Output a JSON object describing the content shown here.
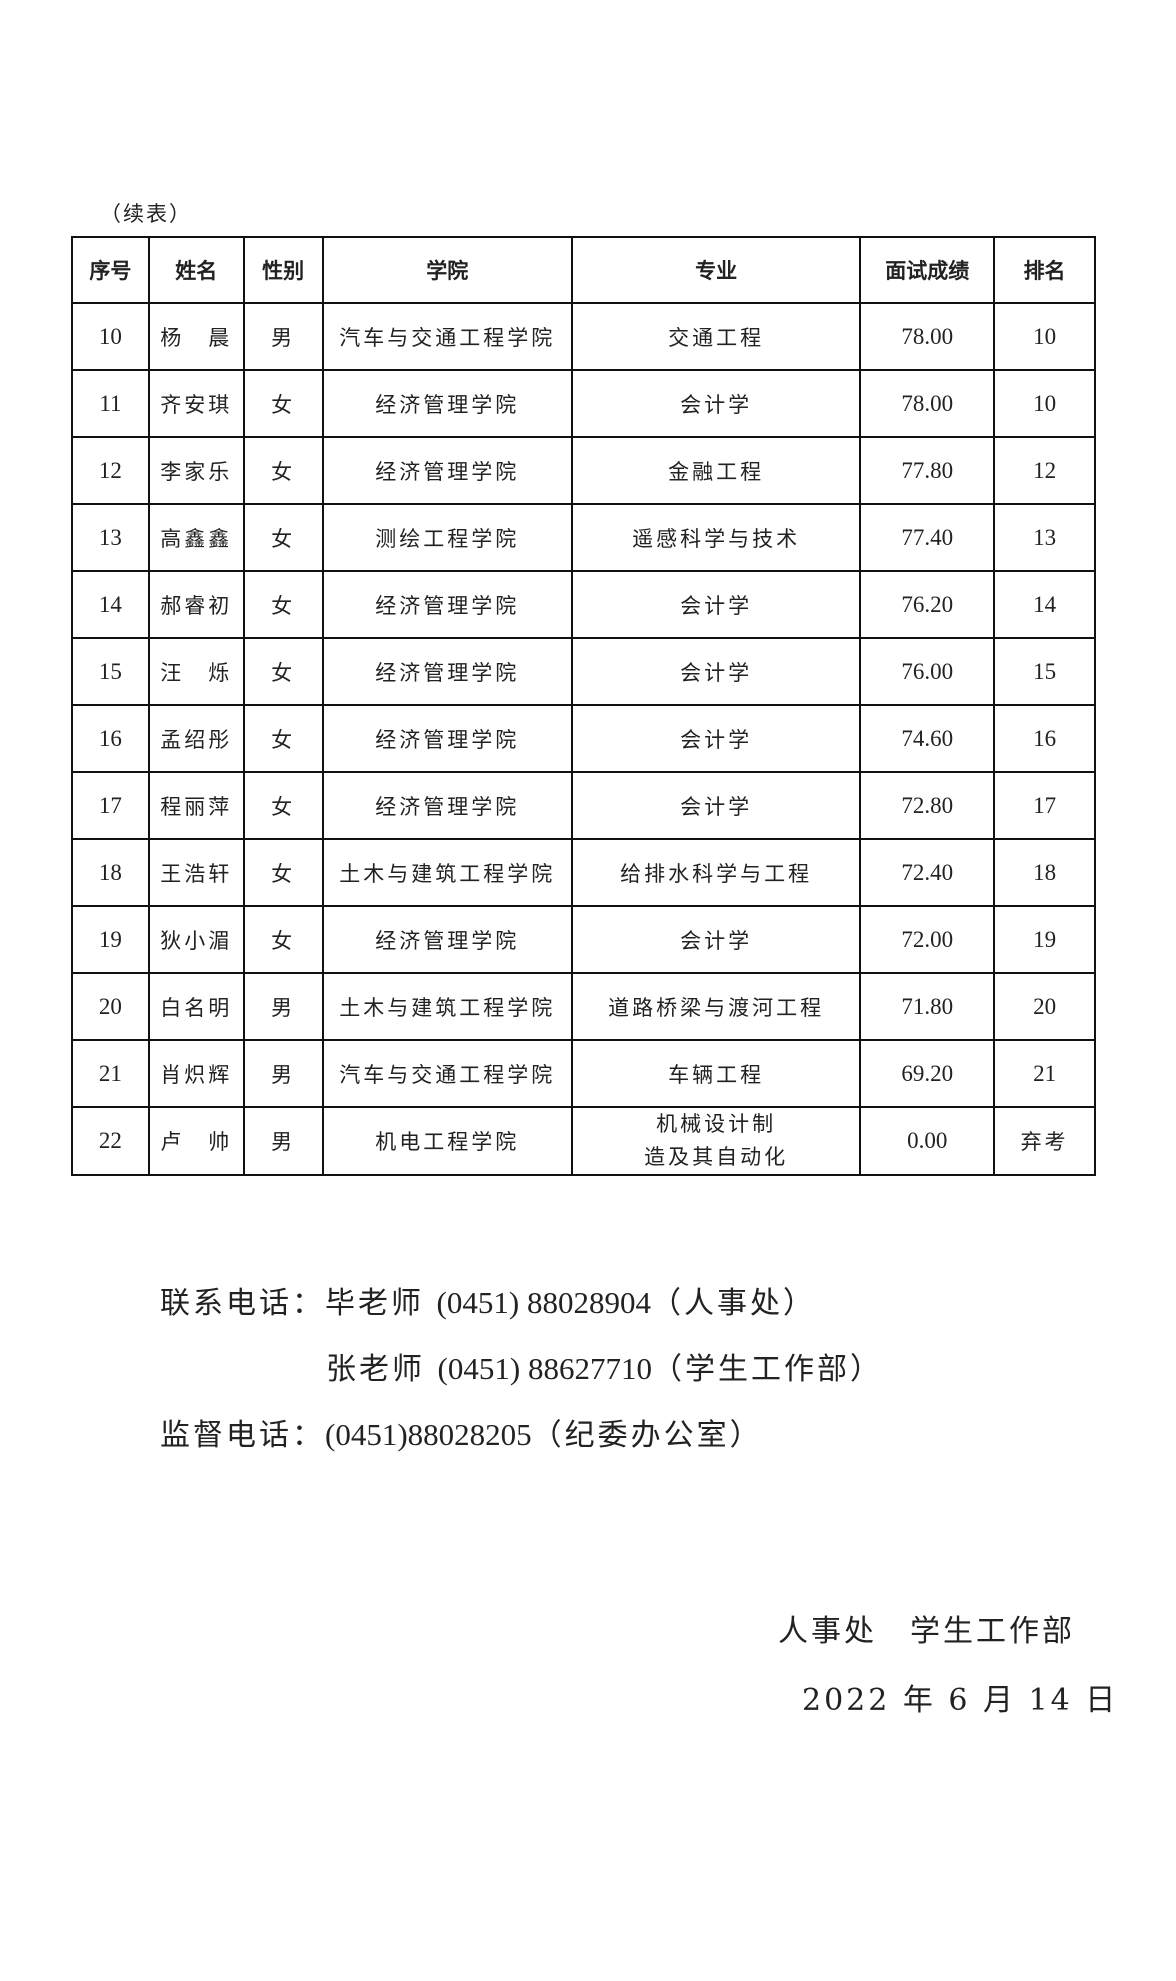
{
  "caption": "（续表）",
  "table": {
    "headers": [
      "序号",
      "姓名",
      "性别",
      "学院",
      "专业",
      "面试成绩",
      "排名"
    ],
    "rows": [
      [
        "10",
        "杨　晨",
        "男",
        "汽车与交通工程学院",
        "交通工程",
        "78.00",
        "10"
      ],
      [
        "11",
        "齐安琪",
        "女",
        "经济管理学院",
        "会计学",
        "78.00",
        "10"
      ],
      [
        "12",
        "李家乐",
        "女",
        "经济管理学院",
        "金融工程",
        "77.80",
        "12"
      ],
      [
        "13",
        "高鑫鑫",
        "女",
        "测绘工程学院",
        "遥感科学与技术",
        "77.40",
        "13"
      ],
      [
        "14",
        "郝睿初",
        "女",
        "经济管理学院",
        "会计学",
        "76.20",
        "14"
      ],
      [
        "15",
        "汪　烁",
        "女",
        "经济管理学院",
        "会计学",
        "76.00",
        "15"
      ],
      [
        "16",
        "孟绍彤",
        "女",
        "经济管理学院",
        "会计学",
        "74.60",
        "16"
      ],
      [
        "17",
        "程丽萍",
        "女",
        "经济管理学院",
        "会计学",
        "72.80",
        "17"
      ],
      [
        "18",
        "王浩轩",
        "女",
        "土木与建筑工程学院",
        "给排水科学与工程",
        "72.40",
        "18"
      ],
      [
        "19",
        "狄小湄",
        "女",
        "经济管理学院",
        "会计学",
        "72.00",
        "19"
      ],
      [
        "20",
        "白名明",
        "男",
        "土木与建筑工程学院",
        "道路桥梁与渡河工程",
        "71.80",
        "20"
      ],
      [
        "21",
        "肖炽辉",
        "男",
        "汽车与交通工程学院",
        "车辆工程",
        "69.20",
        "21"
      ],
      [
        "22",
        "卢　帅",
        "男",
        "机电工程学院",
        "机械设计制\n造及其自动化",
        "0.00",
        "弃考"
      ]
    ]
  },
  "contact": {
    "label": "联系电话：",
    "line1": {
      "person": "毕老师",
      "phone": "(0451) 88028904",
      "dept": "（人事处）"
    },
    "line2": {
      "person": "张老师",
      "phone": "(0451) 88627710",
      "dept": "（学生工作部）"
    }
  },
  "supervision": {
    "label": "监督电话：",
    "phone": "(0451)88028205",
    "dept": "（纪委办公室）"
  },
  "signature": "人事处　学生工作部",
  "date": "2022 年 6 月 14 日"
}
